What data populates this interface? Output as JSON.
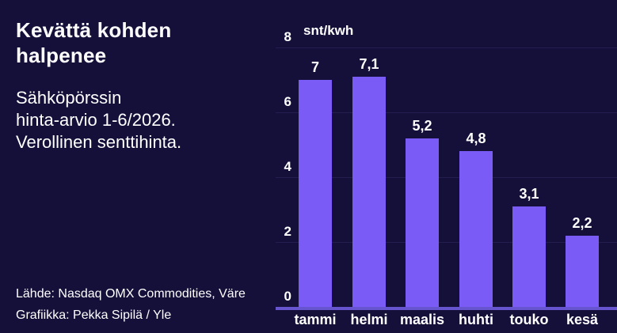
{
  "header": {
    "title": "Kevättä kohden\nhalpenee",
    "subtitle": "Sähköpörssin\nhinta-arvio 1-6/2026.\nVerollinen senttihinta."
  },
  "footer": {
    "source_line": "Lähde: Nasdaq OMX Commodities, Väre",
    "credit_line": "Grafiikka: Pekka Sipilä / Yle"
  },
  "chart_data": {
    "type": "bar",
    "title": "Kevättä kohden halpenee",
    "unit_label": "snt/kwh",
    "categories": [
      "tammi",
      "helmi",
      "maalis",
      "huhti",
      "touko",
      "kesä"
    ],
    "values": [
      7,
      7.1,
      5.2,
      4.8,
      3.1,
      2.2
    ],
    "value_labels": [
      "7",
      "7,1",
      "5,2",
      "4,8",
      "3,1",
      "2,2"
    ],
    "ylabel": "snt/kwh",
    "xlabel": "",
    "ylim": [
      0,
      8
    ],
    "yticks": [
      0,
      2,
      4,
      6,
      8
    ],
    "grid": true,
    "legend": "none",
    "colors": {
      "background": "#14103a",
      "bar": "#7b5bf6",
      "axis": "#6655cf",
      "grid": "#241d4f",
      "text": "#ffffff"
    }
  }
}
